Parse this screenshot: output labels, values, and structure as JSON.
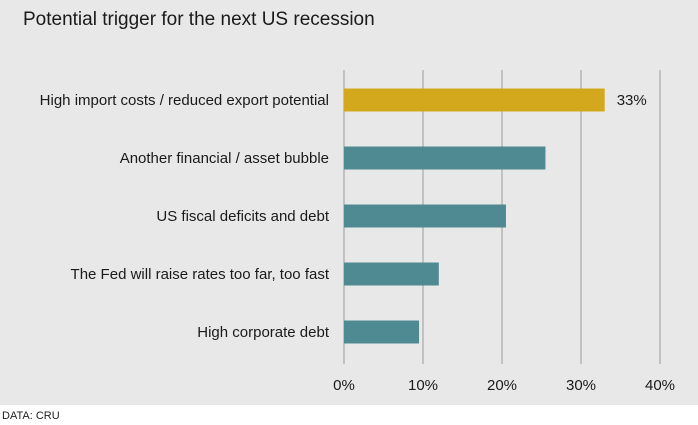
{
  "title": "Potential trigger for the next US recession",
  "source": "DATA: CRU",
  "colors": {
    "background": "#e8e8e8",
    "highlight": "#d4a81c",
    "bar": "#4f8a93",
    "grid": "#a8a8a8"
  },
  "chart_data": {
    "type": "bar",
    "orientation": "horizontal",
    "categories": [
      "High import costs / reduced export potential",
      "Another financial / asset bubble",
      "US fiscal deficits and debt",
      "The Fed will raise rates too far, too fast",
      "High corporate debt"
    ],
    "values": [
      33,
      25.5,
      20.5,
      12,
      9.5
    ],
    "highlight_index": 0,
    "data_labels": [
      "33%",
      "",
      "",
      "",
      ""
    ],
    "xlim": [
      0,
      40
    ],
    "xticks": [
      0,
      10,
      20,
      30,
      40
    ],
    "xtick_labels": [
      "0%",
      "10%",
      "20%",
      "30%",
      "40%"
    ],
    "grid": "vertical"
  }
}
